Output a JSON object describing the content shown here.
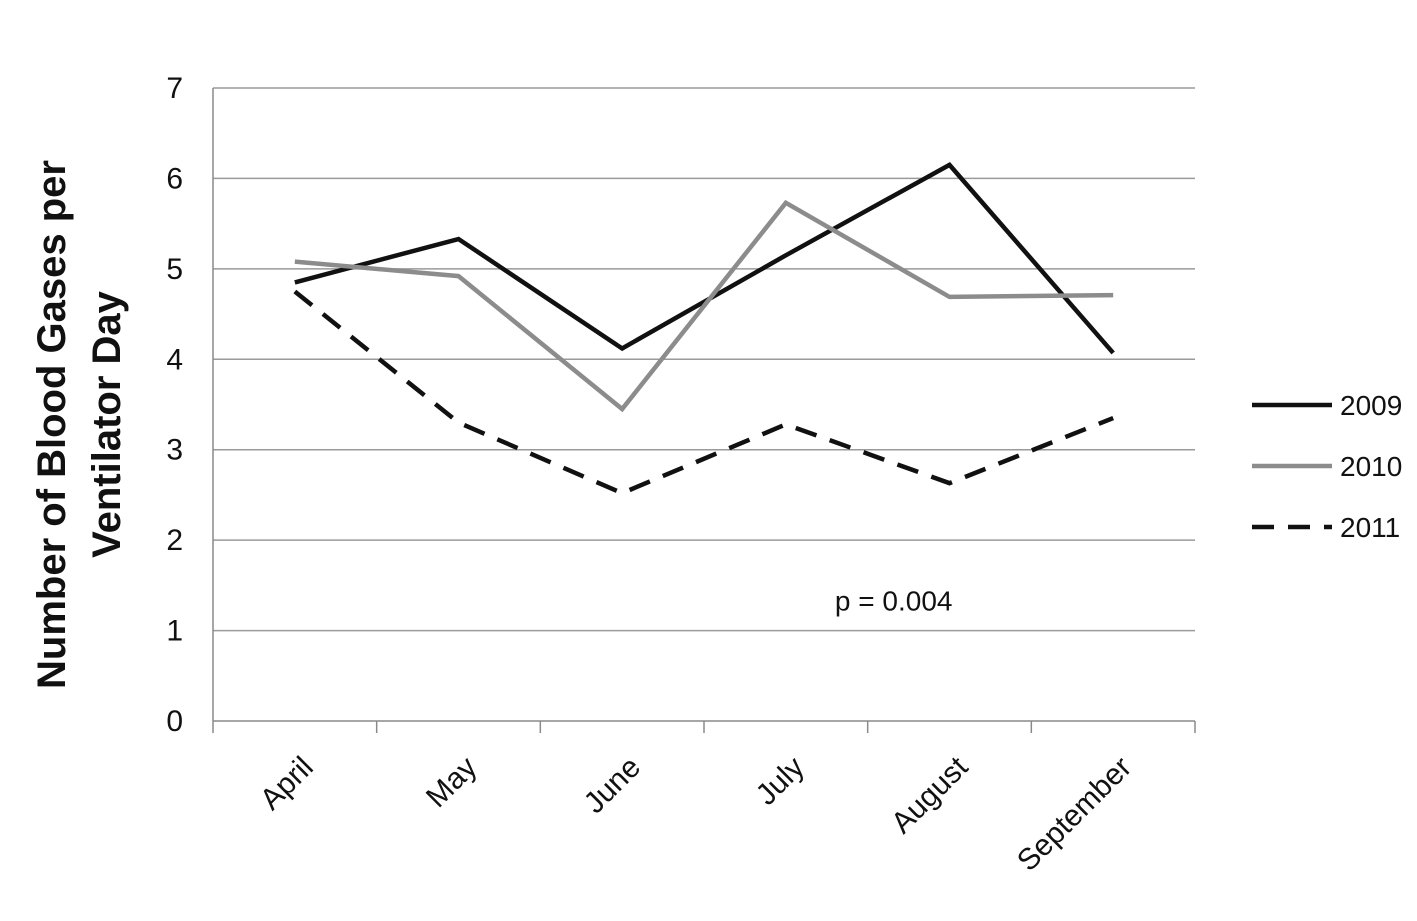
{
  "chart_data": {
    "type": "line",
    "title": "",
    "xlabel": "",
    "ylabel": [
      "Number of Blood Gases per",
      "Ventilator Day"
    ],
    "ylim": [
      0,
      7
    ],
    "yticks": [
      "0",
      "1",
      "2",
      "3",
      "4",
      "5",
      "6",
      "7"
    ],
    "grid": true,
    "legend_position": "right",
    "categories": [
      "April",
      "May",
      "June",
      "July",
      "August",
      "September"
    ],
    "series": [
      {
        "name": "2009",
        "values": [
          4.85,
          5.33,
          4.12,
          5.15,
          6.15,
          4.07
        ],
        "color": "#111111",
        "dash": "solid"
      },
      {
        "name": "2010",
        "values": [
          5.08,
          4.92,
          3.45,
          5.73,
          4.69,
          4.71
        ],
        "color": "#8c8c8c",
        "dash": "solid"
      },
      {
        "name": "2011",
        "values": [
          4.75,
          3.3,
          2.52,
          3.28,
          2.63,
          3.35
        ],
        "color": "#111111",
        "dash": "dashed"
      }
    ],
    "annotations": [
      {
        "text": "p = 0.004",
        "category_position": 3.8,
        "y": 1.22
      }
    ]
  }
}
